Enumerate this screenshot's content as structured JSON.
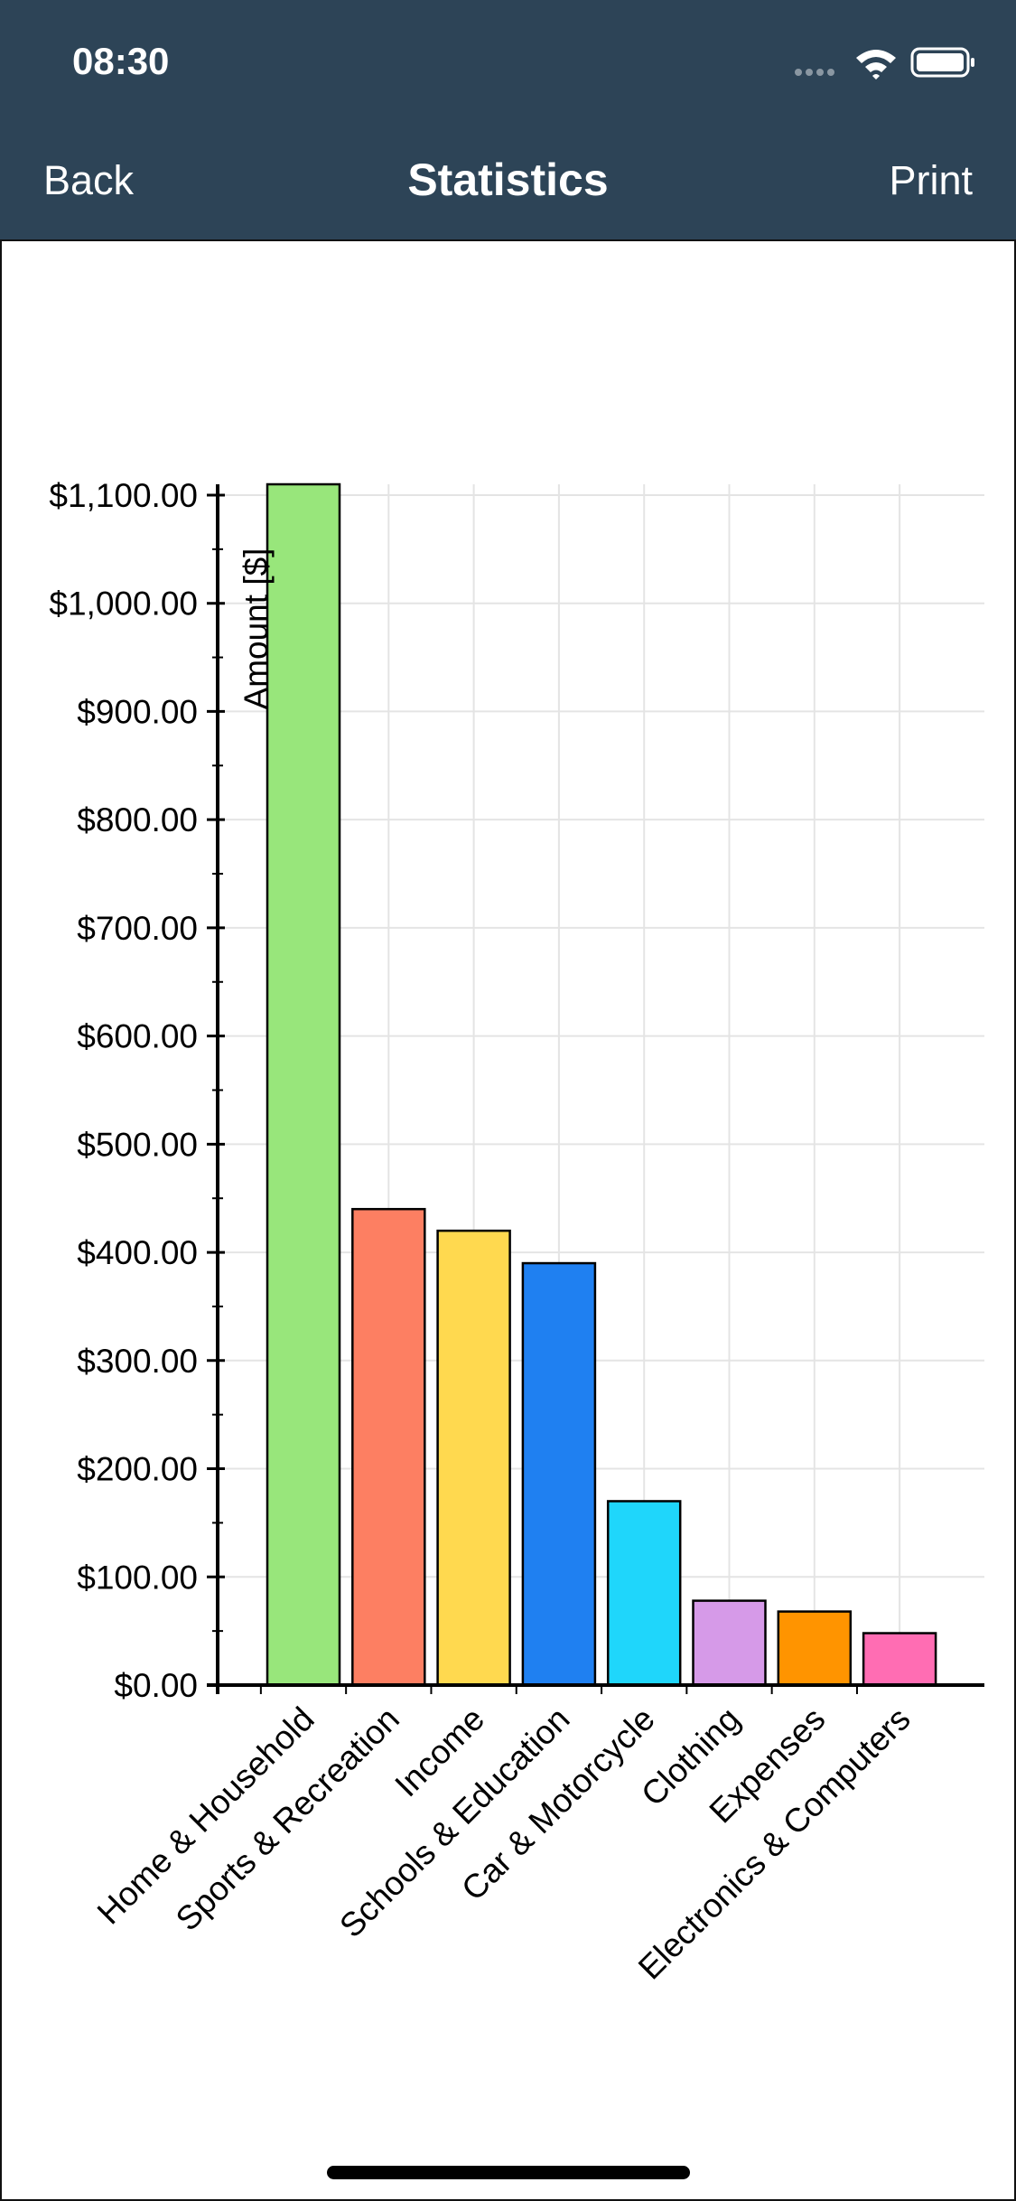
{
  "header": {
    "time": "08:30",
    "back": "Back",
    "title": "Statistics",
    "print": "Print"
  },
  "chart_data": {
    "type": "bar",
    "y_label": "Amount [$]",
    "categories": [
      "Home & Household",
      "Sports & Recreation",
      "Income",
      "Schools & Education",
      "Car & Motorcycle",
      "Clothing",
      "Expenses",
      "Electronics & Computers"
    ],
    "values": [
      1110,
      440,
      420,
      390,
      170,
      78,
      68,
      48
    ],
    "colors": [
      "#98e67b",
      "#fd7f62",
      "#ffd94f",
      "#1f80f1",
      "#1fd6fb",
      "#d69ae8",
      "#ff9400",
      "#ff6db3"
    ],
    "ylim": [
      0,
      1110
    ],
    "yticks": [
      {
        "value": 0,
        "label": "$0.00"
      },
      {
        "value": 100,
        "label": "$100.00"
      },
      {
        "value": 200,
        "label": "$200.00"
      },
      {
        "value": 300,
        "label": "$300.00"
      },
      {
        "value": 400,
        "label": "$400.00"
      },
      {
        "value": 500,
        "label": "$500.00"
      },
      {
        "value": 600,
        "label": "$600.00"
      },
      {
        "value": 700,
        "label": "$700.00"
      },
      {
        "value": 800,
        "label": "$800.00"
      },
      {
        "value": 900,
        "label": "$900.00"
      },
      {
        "value": 1000,
        "label": "$1,000.00"
      },
      {
        "value": 1100,
        "label": "$1,100.00"
      }
    ],
    "grid": true
  }
}
